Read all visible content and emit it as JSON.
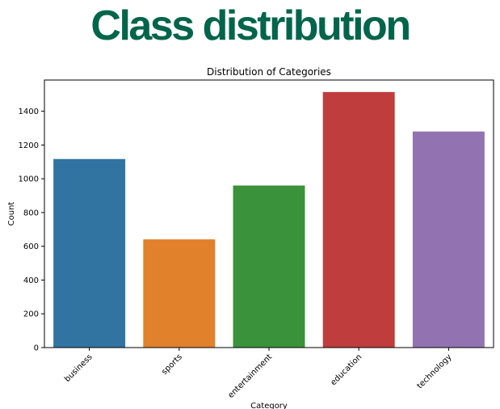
{
  "headline": {
    "text": "Class distribution",
    "color": "#00654a"
  },
  "chart_data": {
    "type": "bar",
    "title": "Distribution of Categories",
    "xlabel": "Category",
    "ylabel": "Count",
    "categories": [
      "business",
      "sports",
      "entertainment",
      "education",
      "technology"
    ],
    "values": [
      1117,
      641,
      960,
      1514,
      1280
    ],
    "colors": [
      "#3174a1",
      "#e1812c",
      "#3a923a",
      "#c03d3e",
      "#9372b2"
    ],
    "ylim": [
      0,
      1585
    ],
    "yticks": [
      0,
      200,
      400,
      600,
      800,
      1000,
      1200,
      1400
    ],
    "grid": false,
    "legend": "none"
  }
}
